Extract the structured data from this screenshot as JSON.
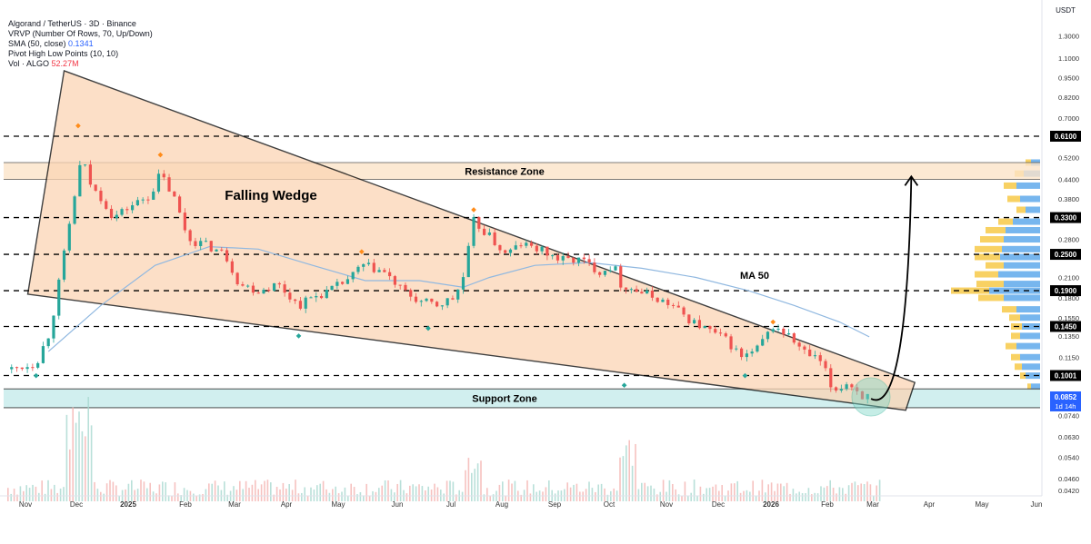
{
  "legend": {
    "symbol": "Algorand / TetherUS · 3D · Binance",
    "vrvp": "VRVP (Number Of Rows, 70, Up/Down)",
    "sma_label": "SMA (50, close)",
    "sma_value": "0.1341",
    "pivot": "Pivot High Low Points (10, 10)",
    "vol_label": "Vol · ALGO",
    "vol_value": "52.27M"
  },
  "colors": {
    "up": "#26a69a",
    "down": "#ef5350",
    "wedge_fill": "#fbd5b5",
    "resistance_fill": "#fbe3c8",
    "support_fill": "#c9ecec",
    "ma": "#90b8e0",
    "vp_up": "#f7c948",
    "vp_down": "#4a9ee8",
    "label_bg": "#000000",
    "price_bg": "#2962ff"
  },
  "chart_data": {
    "type": "candlestick",
    "currency": "USDT",
    "y_scale": "log",
    "y_ticks": [
      "1.3000",
      "1.1000",
      "0.9500",
      "0.8200",
      "0.7000",
      "0.6100",
      "0.5200",
      "0.4400",
      "0.3800",
      "0.3300",
      "0.2800",
      "0.2500",
      "0.2100",
      "0.1900",
      "0.1800",
      "0.1550",
      "0.1450",
      "0.1350",
      "0.1150",
      "0.1001",
      "0.0852",
      "0.0740",
      "0.0630",
      "0.0540",
      "0.0460",
      "0.0420"
    ],
    "x_ticks": [
      "Nov",
      "Dec",
      "2025",
      "Feb",
      "Mar",
      "Apr",
      "May",
      "Jun",
      "Jul",
      "Aug",
      "Sep",
      "Oct",
      "Nov",
      "Dec",
      "2026",
      "Feb",
      "Mar",
      "Apr",
      "May",
      "Jun"
    ],
    "levels": [
      {
        "price": 0.61,
        "label": "0.6100"
      },
      {
        "price": 0.33,
        "label": "0.3300"
      },
      {
        "price": 0.25,
        "label": "0.2500"
      },
      {
        "price": 0.19,
        "label": "0.1900"
      },
      {
        "price": 0.145,
        "label": "0.1450"
      },
      {
        "price": 0.1001,
        "label": "0.1001"
      }
    ],
    "current_price": {
      "price": 0.0852,
      "label": "0.0852",
      "countdown": "1d 14h"
    },
    "zones": {
      "resistance": {
        "label": "Resistance Zone",
        "top": 0.5,
        "bottom": 0.44
      },
      "support": {
        "label": "Support Zone",
        "top": 0.0905,
        "bottom": 0.0785
      }
    },
    "annotations": {
      "pattern": "Falling Wedge",
      "ma": "MA 50"
    },
    "wedge": {
      "start_date": "2024-11-24",
      "upper_start": 1.0,
      "lower_start": 0.185,
      "end_date": "2026-03-25",
      "upper_end": 0.095,
      "lower_end": 0.077
    },
    "projection": {
      "from_date": "2026-02-28",
      "from_price": 0.084,
      "to_date": "2026-03-23",
      "to_price": 0.45
    },
    "price_path": [
      [
        "2024-10-25",
        0.105
      ],
      [
        "2024-11-08",
        0.11
      ],
      [
        "2024-11-16",
        0.14
      ],
      [
        "2024-11-24",
        0.25
      ],
      [
        "2024-12-01",
        0.42
      ],
      [
        "2024-12-04",
        0.52
      ],
      [
        "2024-12-10",
        0.41
      ],
      [
        "2024-12-16",
        0.38
      ],
      [
        "2024-12-22",
        0.33
      ],
      [
        "2025-01-01",
        0.36
      ],
      [
        "2025-01-12",
        0.39
      ],
      [
        "2025-01-18",
        0.46
      ],
      [
        "2025-01-26",
        0.38
      ],
      [
        "2025-02-03",
        0.28
      ],
      [
        "2025-02-12",
        0.27
      ],
      [
        "2025-02-24",
        0.25
      ],
      [
        "2025-03-04",
        0.2
      ],
      [
        "2025-03-15",
        0.19
      ],
      [
        "2025-03-26",
        0.2
      ],
      [
        "2025-04-07",
        0.17
      ],
      [
        "2025-04-14",
        0.18
      ],
      [
        "2025-04-25",
        0.19
      ],
      [
        "2025-05-07",
        0.21
      ],
      [
        "2025-05-13",
        0.23
      ],
      [
        "2025-05-25",
        0.22
      ],
      [
        "2025-06-05",
        0.19
      ],
      [
        "2025-06-15",
        0.175
      ],
      [
        "2025-06-25",
        0.17
      ],
      [
        "2025-07-05",
        0.18
      ],
      [
        "2025-07-10",
        0.21
      ],
      [
        "2025-07-16",
        0.32
      ],
      [
        "2025-07-24",
        0.29
      ],
      [
        "2025-08-03",
        0.25
      ],
      [
        "2025-08-12",
        0.27
      ],
      [
        "2025-08-22",
        0.26
      ],
      [
        "2025-09-03",
        0.24
      ],
      [
        "2025-09-15",
        0.24
      ],
      [
        "2025-09-26",
        0.22
      ],
      [
        "2025-10-04",
        0.23
      ],
      [
        "2025-10-08",
        0.2
      ],
      [
        "2025-10-17",
        0.19
      ],
      [
        "2025-10-28",
        0.18
      ],
      [
        "2025-11-06",
        0.17
      ],
      [
        "2025-11-18",
        0.15
      ],
      [
        "2025-11-28",
        0.14
      ],
      [
        "2025-12-08",
        0.13
      ],
      [
        "2025-12-16",
        0.115
      ],
      [
        "2025-12-24",
        0.12
      ],
      [
        "2026-01-03",
        0.145
      ],
      [
        "2026-01-12",
        0.135
      ],
      [
        "2026-01-20",
        0.12
      ],
      [
        "2026-01-31",
        0.11
      ],
      [
        "2026-02-06",
        0.089
      ],
      [
        "2026-02-15",
        0.095
      ],
      [
        "2026-02-23",
        0.086
      ],
      [
        "2026-02-27",
        0.085
      ]
    ],
    "ma50_path": [
      [
        "2024-11-15",
        0.12
      ],
      [
        "2024-12-15",
        0.17
      ],
      [
        "2025-01-15",
        0.23
      ],
      [
        "2025-02-15",
        0.265
      ],
      [
        "2025-03-15",
        0.26
      ],
      [
        "2025-04-15",
        0.23
      ],
      [
        "2025-05-15",
        0.205
      ],
      [
        "2025-06-15",
        0.205
      ],
      [
        "2025-07-10",
        0.195
      ],
      [
        "2025-07-25",
        0.21
      ],
      [
        "2025-08-20",
        0.23
      ],
      [
        "2025-09-20",
        0.235
      ],
      [
        "2025-10-20",
        0.225
      ],
      [
        "2025-11-20",
        0.21
      ],
      [
        "2025-12-20",
        0.19
      ],
      [
        "2026-01-15",
        0.17
      ],
      [
        "2026-02-10",
        0.15
      ],
      [
        "2026-02-27",
        0.1341
      ]
    ],
    "pivot_highs": [
      [
        "2024-12-02",
        0.66
      ],
      [
        "2025-01-18",
        0.53
      ],
      [
        "2025-05-13",
        0.255
      ],
      [
        "2025-07-16",
        0.35
      ],
      [
        "2026-01-03",
        0.15
      ]
    ],
    "pivot_lows": [
      [
        "2024-11-08",
        0.1
      ],
      [
        "2025-04-07",
        0.135
      ],
      [
        "2025-06-20",
        0.143
      ],
      [
        "2025-10-10",
        0.093
      ],
      [
        "2025-12-18",
        0.1
      ]
    ],
    "volume_profile": [
      {
        "price": 0.5,
        "up": 6,
        "down": 10
      },
      {
        "price": 0.46,
        "up": 10,
        "down": 18
      },
      {
        "price": 0.42,
        "up": 14,
        "down": 26
      },
      {
        "price": 0.38,
        "up": 14,
        "down": 22
      },
      {
        "price": 0.35,
        "up": 10,
        "down": 16
      },
      {
        "price": 0.32,
        "up": 16,
        "down": 30
      },
      {
        "price": 0.3,
        "up": 22,
        "down": 38
      },
      {
        "price": 0.28,
        "up": 26,
        "down": 40
      },
      {
        "price": 0.26,
        "up": 30,
        "down": 42
      },
      {
        "price": 0.245,
        "up": 28,
        "down": 44
      },
      {
        "price": 0.23,
        "up": 20,
        "down": 40
      },
      {
        "price": 0.215,
        "up": 26,
        "down": 46
      },
      {
        "price": 0.2,
        "up": 30,
        "down": 40
      },
      {
        "price": 0.19,
        "up": 42,
        "down": 56
      },
      {
        "price": 0.18,
        "up": 28,
        "down": 40
      },
      {
        "price": 0.165,
        "up": 16,
        "down": 26
      },
      {
        "price": 0.155,
        "up": 12,
        "down": 22
      },
      {
        "price": 0.145,
        "up": 12,
        "down": 20
      },
      {
        "price": 0.135,
        "up": 10,
        "down": 22
      },
      {
        "price": 0.125,
        "up": 12,
        "down": 26
      },
      {
        "price": 0.115,
        "up": 10,
        "down": 22
      },
      {
        "price": 0.107,
        "up": 8,
        "down": 20
      },
      {
        "price": 0.1,
        "up": 6,
        "down": 16
      },
      {
        "price": 0.092,
        "up": 4,
        "down": 10
      }
    ]
  }
}
